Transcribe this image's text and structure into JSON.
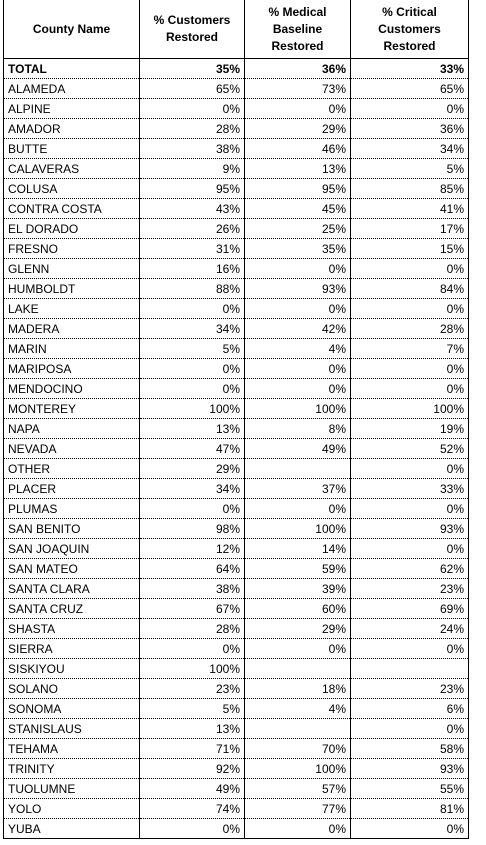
{
  "table": {
    "header": [
      "County Name",
      "% Customers\nRestored",
      "% Medical\nBaseline\nRestored",
      "% Critical\nCustomers\nRestored"
    ],
    "rows": [
      [
        "TOTAL",
        "35%",
        "36%",
        "33%"
      ],
      [
        "ALAMEDA",
        "65%",
        "73%",
        "65%"
      ],
      [
        "ALPINE",
        "0%",
        "0%",
        "0%"
      ],
      [
        "AMADOR",
        "28%",
        "29%",
        "36%"
      ],
      [
        "BUTTE",
        "38%",
        "46%",
        "34%"
      ],
      [
        "CALAVERAS",
        "9%",
        "13%",
        "5%"
      ],
      [
        "COLUSA",
        "95%",
        "95%",
        "85%"
      ],
      [
        "CONTRA COSTA",
        "43%",
        "45%",
        "41%"
      ],
      [
        "EL DORADO",
        "26%",
        "25%",
        "17%"
      ],
      [
        "FRESNO",
        "31%",
        "35%",
        "15%"
      ],
      [
        "GLENN",
        "16%",
        "0%",
        "0%"
      ],
      [
        "HUMBOLDT",
        "88%",
        "93%",
        "84%"
      ],
      [
        "LAKE",
        "0%",
        "0%",
        "0%"
      ],
      [
        "MADERA",
        "34%",
        "42%",
        "28%"
      ],
      [
        "MARIN",
        "5%",
        "4%",
        "7%"
      ],
      [
        "MARIPOSA",
        "0%",
        "0%",
        "0%"
      ],
      [
        "MENDOCINO",
        "0%",
        "0%",
        "0%"
      ],
      [
        "MONTEREY",
        "100%",
        "100%",
        "100%"
      ],
      [
        "NAPA",
        "13%",
        "8%",
        "19%"
      ],
      [
        "NEVADA",
        "47%",
        "49%",
        "52%"
      ],
      [
        "OTHER",
        "29%",
        null,
        "0%"
      ],
      [
        "PLACER",
        "34%",
        "37%",
        "33%"
      ],
      [
        "PLUMAS",
        "0%",
        "0%",
        "0%"
      ],
      [
        "SAN BENITO",
        "98%",
        "100%",
        "93%"
      ],
      [
        "SAN JOAQUIN",
        "12%",
        "14%",
        "0%"
      ],
      [
        "SAN MATEO",
        "64%",
        "59%",
        "62%"
      ],
      [
        "SANTA CLARA",
        "38%",
        "39%",
        "23%"
      ],
      [
        "SANTA CRUZ",
        "67%",
        "60%",
        "69%"
      ],
      [
        "SHASTA",
        "28%",
        "29%",
        "24%"
      ],
      [
        "SIERRA",
        "0%",
        "0%",
        "0%"
      ],
      [
        "SISKIYOU",
        "100%",
        null,
        null
      ],
      [
        "SOLANO",
        "23%",
        "18%",
        "23%"
      ],
      [
        "SONOMA",
        "5%",
        "4%",
        "6%"
      ],
      [
        "STANISLAUS",
        "13%",
        null,
        "0%"
      ],
      [
        "TEHAMA",
        "71%",
        "70%",
        "58%"
      ],
      [
        "TRINITY",
        "92%",
        "100%",
        "93%"
      ],
      [
        "TUOLUMNE",
        "49%",
        "57%",
        "55%"
      ],
      [
        "YOLO",
        "74%",
        "77%",
        "81%"
      ],
      [
        "YUBA",
        "0%",
        "0%",
        "0%"
      ]
    ]
  }
}
